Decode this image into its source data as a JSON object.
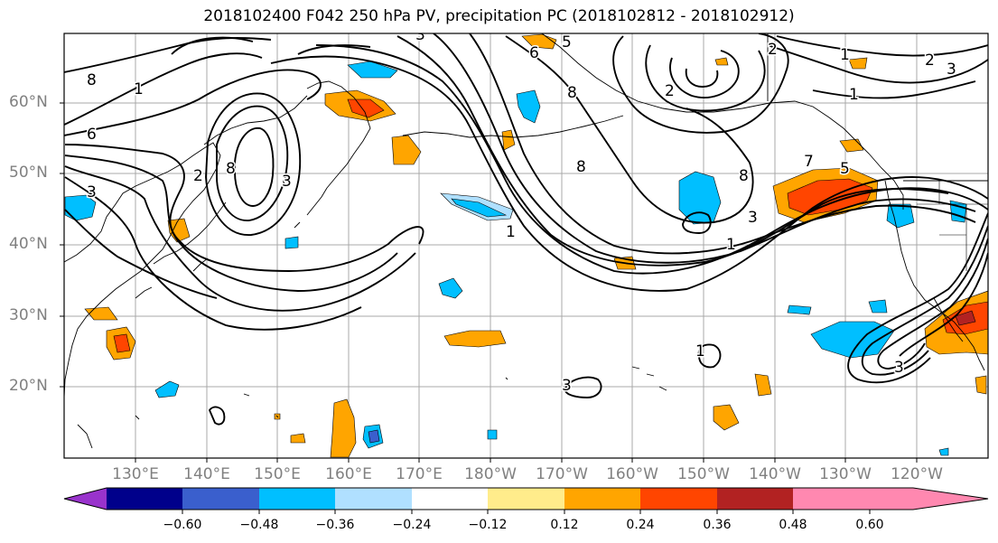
{
  "title": "2018102400 F042 250 hPa PV, precipitation PC (2018102812 - 2018102912)",
  "latitude_labels": [
    "60°N",
    "50°N",
    "40°N",
    "30°N",
    "20°N"
  ],
  "longitude_labels": [
    "130°E",
    "140°E",
    "150°E",
    "160°E",
    "170°E",
    "180°W",
    "170°W",
    "160°W",
    "150°W",
    "140°W",
    "130°W",
    "120°W"
  ],
  "contour_labels": [
    "8",
    "6",
    "3",
    "8",
    "2",
    "3",
    "6",
    "5",
    "8",
    "8",
    "2",
    "1",
    "3",
    "8",
    "2",
    "7",
    "5",
    "1",
    "2",
    "3",
    "1",
    "1",
    "1",
    "3",
    "3",
    "1",
    "3"
  ],
  "colorbar": {
    "tick_labels": [
      "−0.60",
      "−0.48",
      "−0.36",
      "−0.24",
      "−0.12",
      "0.12",
      "0.24",
      "0.36",
      "0.48",
      "0.60"
    ],
    "colors": [
      "#9933cc",
      "#00008b",
      "#3a5fcd",
      "#00bfff",
      "#b0e0ff",
      "#ffffff",
      "#ffec8b",
      "#ffa500",
      "#ff4500",
      "#b22222",
      "#ff88b0"
    ]
  },
  "precip_colors": {
    "light_blue": "#b0e0ff",
    "blue": "#00bfff",
    "dark_blue": "#3a5fcd",
    "light_yellow": "#ffec8b",
    "orange": "#ffa500",
    "red_orange": "#ff4500",
    "dark_red": "#b22222"
  }
}
